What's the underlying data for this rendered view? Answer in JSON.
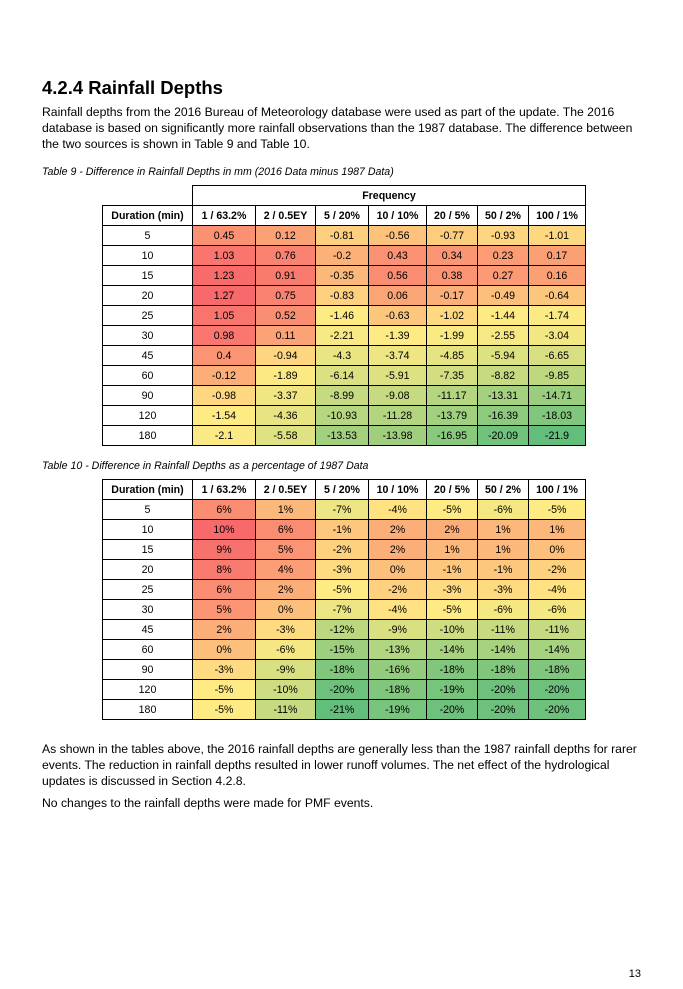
{
  "section": {
    "heading": "4.2.4 Rainfall Depths",
    "intro": "Rainfall depths from the 2016 Bureau of Meteorology database were used as part of the update. The 2016 database is based on significantly more rainfall observations than the 1987 database. The difference between the two sources is shown in Table 9 and Table 10."
  },
  "table9": {
    "caption": "Table 9 - Difference in Rainfall Depths in mm (2016 Data minus 1987 Data)",
    "group_header": "Frequency",
    "columns": [
      "Duration (min)",
      "1 / 63.2%",
      "2 / 0.5EY",
      "5 / 20%",
      "10 / 10%",
      "20 / 5%",
      "50 / 2%",
      "100 / 1%"
    ],
    "rows": [
      {
        "duration": "5",
        "values": [
          "0.45",
          "0.12",
          "-0.81",
          "-0.56",
          "-0.77",
          "-0.93",
          "-1.01"
        ]
      },
      {
        "duration": "10",
        "values": [
          "1.03",
          "0.76",
          "-0.2",
          "0.43",
          "0.34",
          "0.23",
          "0.17"
        ]
      },
      {
        "duration": "15",
        "values": [
          "1.23",
          "0.91",
          "-0.35",
          "0.56",
          "0.38",
          "0.27",
          "0.16"
        ]
      },
      {
        "duration": "20",
        "values": [
          "1.27",
          "0.75",
          "-0.83",
          "0.06",
          "-0.17",
          "-0.49",
          "-0.64"
        ]
      },
      {
        "duration": "25",
        "values": [
          "1.05",
          "0.52",
          "-1.46",
          "-0.63",
          "-1.02",
          "-1.44",
          "-1.74"
        ]
      },
      {
        "duration": "30",
        "values": [
          "0.98",
          "0.11",
          "-2.21",
          "-1.39",
          "-1.99",
          "-2.55",
          "-3.04"
        ]
      },
      {
        "duration": "45",
        "values": [
          "0.4",
          "-0.94",
          "-4.3",
          "-3.74",
          "-4.85",
          "-5.94",
          "-6.65"
        ]
      },
      {
        "duration": "60",
        "values": [
          "-0.12",
          "-1.89",
          "-6.14",
          "-5.91",
          "-7.35",
          "-8.82",
          "-9.85"
        ]
      },
      {
        "duration": "90",
        "values": [
          "-0.98",
          "-3.37",
          "-8.99",
          "-9.08",
          "-11.17",
          "-13.31",
          "-14.71"
        ]
      },
      {
        "duration": "120",
        "values": [
          "-1.54",
          "-4.36",
          "-10.93",
          "-11.28",
          "-13.79",
          "-16.39",
          "-18.03"
        ]
      },
      {
        "duration": "180",
        "values": [
          "-2.1",
          "-5.58",
          "-13.53",
          "-13.98",
          "-16.95",
          "-20.09",
          "-21.9"
        ]
      }
    ]
  },
  "table10": {
    "caption": "Table 10 - Difference in Rainfall Depths as a percentage of 1987 Data",
    "columns": [
      "Duration (min)",
      "1 / 63.2%",
      "2 / 0.5EY",
      "5 / 20%",
      "10 / 10%",
      "20 / 5%",
      "50 / 2%",
      "100 / 1%"
    ],
    "rows": [
      {
        "duration": "5",
        "values": [
          "6%",
          "1%",
          "-7%",
          "-4%",
          "-5%",
          "-6%",
          "-5%"
        ]
      },
      {
        "duration": "10",
        "values": [
          "10%",
          "6%",
          "-1%",
          "2%",
          "2%",
          "1%",
          "1%"
        ]
      },
      {
        "duration": "15",
        "values": [
          "9%",
          "5%",
          "-2%",
          "2%",
          "1%",
          "1%",
          "0%"
        ]
      },
      {
        "duration": "20",
        "values": [
          "8%",
          "4%",
          "-3%",
          "0%",
          "-1%",
          "-1%",
          "-2%"
        ]
      },
      {
        "duration": "25",
        "values": [
          "6%",
          "2%",
          "-5%",
          "-2%",
          "-3%",
          "-3%",
          "-4%"
        ]
      },
      {
        "duration": "30",
        "values": [
          "5%",
          "0%",
          "-7%",
          "-4%",
          "-5%",
          "-6%",
          "-6%"
        ]
      },
      {
        "duration": "45",
        "values": [
          "2%",
          "-3%",
          "-12%",
          "-9%",
          "-10%",
          "-11%",
          "-11%"
        ]
      },
      {
        "duration": "60",
        "values": [
          "0%",
          "-6%",
          "-15%",
          "-13%",
          "-14%",
          "-14%",
          "-14%"
        ]
      },
      {
        "duration": "90",
        "values": [
          "-3%",
          "-9%",
          "-18%",
          "-16%",
          "-18%",
          "-18%",
          "-18%"
        ]
      },
      {
        "duration": "120",
        "values": [
          "-5%",
          "-10%",
          "-20%",
          "-18%",
          "-19%",
          "-20%",
          "-20%"
        ]
      },
      {
        "duration": "180",
        "values": [
          "-5%",
          "-11%",
          "-21%",
          "-19%",
          "-20%",
          "-20%",
          "-20%"
        ]
      }
    ]
  },
  "conclusion": {
    "p1": "As shown in the tables above, the 2016 rainfall depths are generally less than the 1987 rainfall depths for rarer events. The reduction in rainfall depths resulted in lower runoff volumes. The net effect of the hydrological updates is discussed in Section 4.2.8.",
    "p2": "No changes to the rainfall depths were made for PMF events."
  },
  "page_number": "13",
  "heatmap_colors": {
    "high": "#f8696b",
    "mid": "#ffeb84",
    "low": "#63be7b"
  }
}
